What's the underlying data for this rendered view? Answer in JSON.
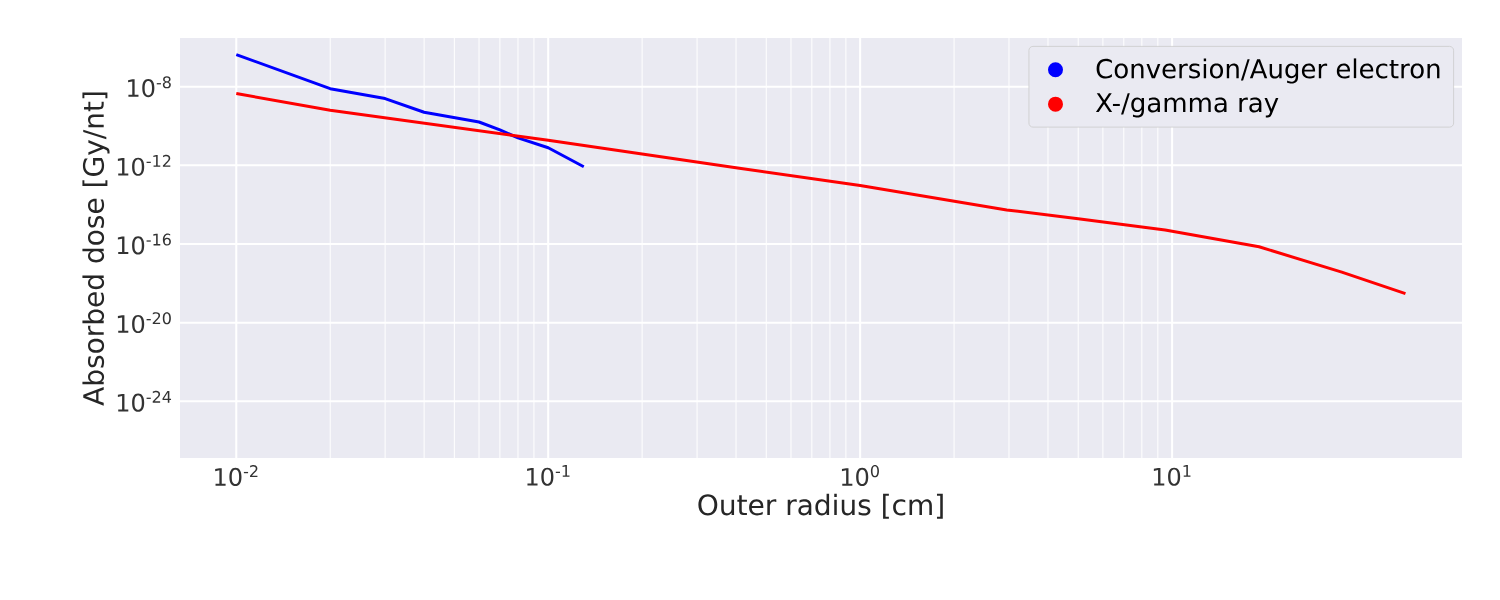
{
  "chart_data": {
    "type": "line",
    "xlabel": "Outer radius [cm]",
    "ylabel": "Absorbed dose [Gy/nt]",
    "log": "xy",
    "grid": true,
    "legend": "top right",
    "xlim": [
      0.0066,
      85
    ],
    "ylim": [
      1.3e-27,
      3e-06
    ],
    "xticks": [
      {
        "value": 0.01,
        "label": "10$^{-2}$"
      },
      {
        "value": 0.1,
        "label": "10$^{-1}$"
      },
      {
        "value": 1,
        "label": "10$^{0}$"
      },
      {
        "value": 10,
        "label": "10$^{1}$"
      }
    ],
    "yticks": [
      {
        "value": 1e-24,
        "label": "10$^{-24}$"
      },
      {
        "value": 1e-20,
        "label": "10$^{-20}$"
      },
      {
        "value": 1e-16,
        "label": "10$^{-16}$"
      },
      {
        "value": 1e-12,
        "label": "10$^{-12}$"
      },
      {
        "value": 1e-08,
        "label": "10$^{-8}$"
      }
    ],
    "series": [
      {
        "name": "Conversion/Auger electron",
        "color": "#0000ff",
        "x": [
          0.01,
          0.02,
          0.03,
          0.04,
          0.06,
          0.07,
          0.08,
          0.1,
          0.13
        ],
        "values": [
          4.3e-07,
          7.9e-09,
          2.5e-09,
          5e-10,
          1.6e-10,
          6.3e-11,
          2.5e-11,
          7.9e-12,
          8.5e-13
        ]
      },
      {
        "name": "X-/gamma ray",
        "color": "#ff0000",
        "x": [
          0.01,
          0.02,
          0.1,
          0.41,
          1,
          2.95,
          5,
          9.5,
          19,
          35,
          56
        ],
        "values": [
          4.5e-09,
          6.3e-10,
          1.9e-11,
          7.2e-13,
          9.5e-14,
          5.4e-15,
          1.9e-15,
          5.1e-16,
          7.2e-17,
          3.7e-18,
          3e-19
        ]
      }
    ]
  }
}
